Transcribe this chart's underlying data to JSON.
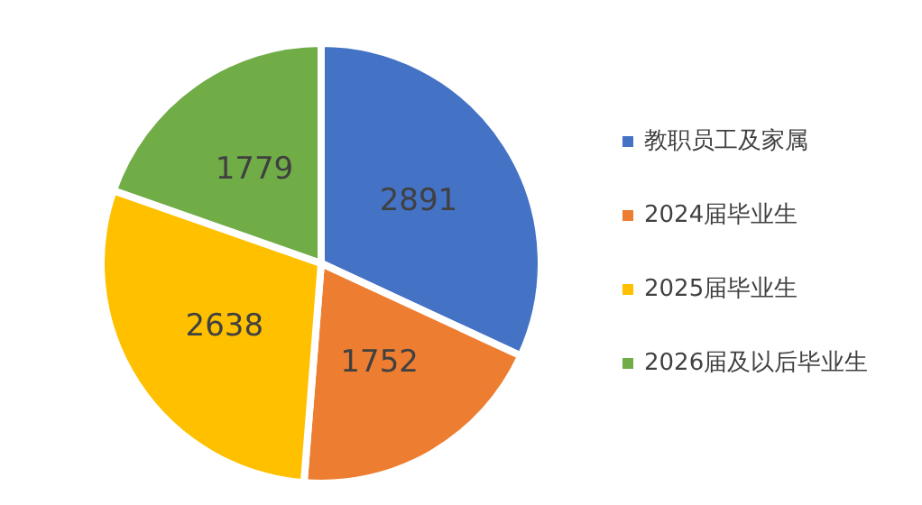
{
  "chart_data": {
    "type": "pie",
    "categories": [
      "教职员工及家属",
      "2024届毕业生",
      "2025届毕业生",
      "2026届及以后毕业生"
    ],
    "values": [
      2891,
      1752,
      2638,
      1779
    ],
    "colors": [
      "#4472c4",
      "#ed7d31",
      "#ffc000",
      "#70ad47"
    ],
    "data_labels": true,
    "legend": "right"
  }
}
